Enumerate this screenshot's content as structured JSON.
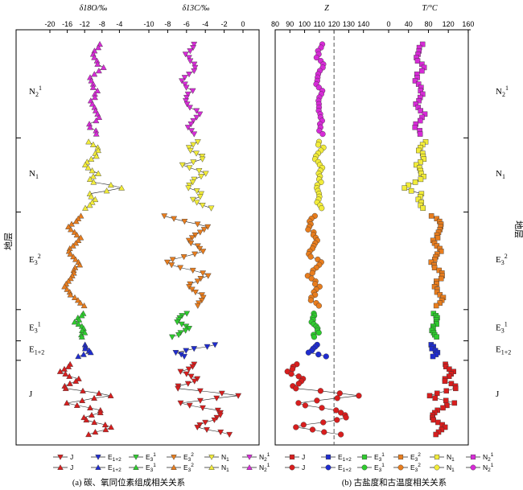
{
  "captions": {
    "left": "(a) 碳、氧同位素组成相关关系",
    "right": "(b) 古盐度和古温度相关关系"
  },
  "strata_axis_title": "地层",
  "strata_labels": [
    {
      "main": "N",
      "sub": "2",
      "sup": "1",
      "depth": 0.12
    },
    {
      "main": "N",
      "sub": "1",
      "sup": "",
      "depth": 0.33
    },
    {
      "main": "E",
      "sub": "3",
      "sup": "2",
      "depth": 0.55
    },
    {
      "main": "E",
      "sub": "3",
      "sup": "1",
      "depth": 0.725
    },
    {
      "main": "E",
      "sub": "1+2",
      "sup": "",
      "depth": 0.78
    },
    {
      "main": "J",
      "sub": "",
      "sup": "",
      "depth": 0.895
    }
  ],
  "legend": {
    "top_markers": [
      "J",
      "E1+2",
      "E3 1",
      "E3 2",
      "N1",
      "N2 1"
    ],
    "rows_left": [
      {
        "marker": "triangle-down",
        "entries": [
          {
            "label": "J",
            "sub": "",
            "sup": "",
            "color": "#d81e1e"
          },
          {
            "label": "E",
            "sub": "1+2",
            "sup": "",
            "color": "#1f2ccf"
          },
          {
            "label": "E",
            "sub": "3",
            "sup": "1",
            "color": "#2ecc2e"
          },
          {
            "label": "E",
            "sub": "3",
            "sup": "2",
            "color": "#e87d1e"
          },
          {
            "label": "N",
            "sub": "1",
            "sup": "",
            "color": "#f2ec3a"
          },
          {
            "label": "N",
            "sub": "2",
            "sup": "1",
            "color": "#d72bd7"
          }
        ]
      },
      {
        "marker": "triangle-up",
        "entries": [
          {
            "label": "J",
            "sub": "",
            "sup": "",
            "color": "#d81e1e"
          },
          {
            "label": "E",
            "sub": "1+2",
            "sup": "",
            "color": "#1f2ccf"
          },
          {
            "label": "E",
            "sub": "3",
            "sup": "1",
            "color": "#2ecc2e"
          },
          {
            "label": "E",
            "sub": "3",
            "sup": "2",
            "color": "#e87d1e"
          },
          {
            "label": "N",
            "sub": "1",
            "sup": "",
            "color": "#f2ec3a"
          },
          {
            "label": "N",
            "sub": "2",
            "sup": "1",
            "color": "#d72bd7"
          }
        ]
      }
    ],
    "rows_right": [
      {
        "marker": "square",
        "entries": [
          {
            "label": "J",
            "sub": "",
            "sup": "",
            "color": "#d81e1e"
          },
          {
            "label": "E",
            "sub": "1+2",
            "sup": "",
            "color": "#1f2ccf"
          },
          {
            "label": "E",
            "sub": "3",
            "sup": "1",
            "color": "#2ecc2e"
          },
          {
            "label": "E",
            "sub": "3",
            "sup": "2",
            "color": "#e87d1e"
          },
          {
            "label": "N",
            "sub": "1",
            "sup": "",
            "color": "#f2ec3a"
          },
          {
            "label": "N",
            "sub": "2",
            "sup": "1",
            "color": "#d72bd7"
          }
        ]
      },
      {
        "marker": "circle",
        "entries": [
          {
            "label": "J",
            "sub": "",
            "sup": "",
            "color": "#d81e1e"
          },
          {
            "label": "E",
            "sub": "1+2",
            "sup": "",
            "color": "#1f2ccf"
          },
          {
            "label": "E",
            "sub": "3",
            "sup": "1",
            "color": "#2ecc2e"
          },
          {
            "label": "E",
            "sub": "3",
            "sup": "2",
            "color": "#e87d1e"
          },
          {
            "label": "N",
            "sub": "1",
            "sup": "",
            "color": "#f2ec3a"
          },
          {
            "label": "N",
            "sub": "2",
            "sup": "1",
            "color": "#d72bd7"
          }
        ]
      }
    ]
  },
  "strata_colors": {
    "N2_1": "#d72bd7",
    "N1": "#f2ec3a",
    "E3_2": "#e87d1e",
    "E3_1": "#2ecc2e",
    "E1_2": "#1f2ccf",
    "J": "#d81e1e"
  },
  "chart_data": [
    {
      "type": "line",
      "id": "d18O",
      "title": "δ18O/‰",
      "xlim": [
        -20,
        0
      ],
      "xticks": [
        -20,
        -16,
        -12,
        -8,
        -4
      ],
      "tick_labels": [
        "-20",
        "-16",
        "-12",
        "-8",
        "-4"
      ],
      "marker": "triangle-up",
      "profile": [
        [
          0.0,
          -8.5
        ],
        [
          0.03,
          -10
        ],
        [
          0.06,
          -8
        ],
        [
          0.09,
          -11
        ],
        [
          0.12,
          -9
        ],
        [
          0.15,
          -10.5
        ],
        [
          0.18,
          -8.5
        ],
        [
          0.21,
          -11
        ],
        [
          0.23,
          -9
        ],
        [
          0.25,
          -11
        ],
        [
          0.27,
          -8.5
        ],
        [
          0.29,
          -10
        ],
        [
          0.31,
          -12
        ],
        [
          0.33,
          -9
        ],
        [
          0.35,
          -11
        ],
        [
          0.37,
          -2.5
        ],
        [
          0.38,
          -11
        ],
        [
          0.4,
          -9.5
        ],
        [
          0.42,
          -12
        ],
        [
          0.44,
          -12.5
        ],
        [
          0.47,
          -15.5
        ],
        [
          0.5,
          -13
        ],
        [
          0.53,
          -16
        ],
        [
          0.56,
          -13
        ],
        [
          0.59,
          -15
        ],
        [
          0.62,
          -17
        ],
        [
          0.65,
          -14
        ],
        [
          0.67,
          -12
        ],
        [
          0.69,
          -12.5
        ],
        [
          0.71,
          -14
        ],
        [
          0.73,
          -12
        ],
        [
          0.75,
          -13
        ],
        [
          0.77,
          -12
        ],
        [
          0.79,
          -11
        ],
        [
          0.8,
          -13
        ],
        [
          0.82,
          -15
        ],
        [
          0.84,
          -18
        ],
        [
          0.86,
          -13
        ],
        [
          0.88,
          -17
        ],
        [
          0.9,
          -6
        ],
        [
          0.92,
          -16
        ],
        [
          0.94,
          -7
        ],
        [
          0.96,
          -13
        ],
        [
          0.98,
          -5
        ],
        [
          1.0,
          -11
        ]
      ],
      "segments": [
        [
          0,
          9
        ],
        [
          9,
          19
        ],
        [
          19,
          28
        ],
        [
          28,
          32
        ],
        [
          32,
          35
        ],
        [
          35,
          45
        ]
      ]
    },
    {
      "type": "line",
      "id": "d13C",
      "title": "δ13C/‰",
      "xlim": [
        -10,
        0
      ],
      "xticks": [
        -10,
        -8,
        -6,
        -4,
        -2,
        0
      ],
      "tick_labels": [
        "-10",
        "-8",
        "-6",
        "-4",
        "-2",
        "0"
      ],
      "marker": "triangle-down",
      "profile": [
        [
          0.0,
          -5
        ],
        [
          0.03,
          -6
        ],
        [
          0.06,
          -5
        ],
        [
          0.09,
          -6.5
        ],
        [
          0.12,
          -5.5
        ],
        [
          0.15,
          -6
        ],
        [
          0.18,
          -4.5
        ],
        [
          0.21,
          -6
        ],
        [
          0.23,
          -5
        ],
        [
          0.25,
          -5
        ],
        [
          0.27,
          -6
        ],
        [
          0.29,
          -4
        ],
        [
          0.31,
          -6.5
        ],
        [
          0.33,
          -4
        ],
        [
          0.35,
          -5.5
        ],
        [
          0.37,
          -6
        ],
        [
          0.38,
          -4
        ],
        [
          0.4,
          -5.5
        ],
        [
          0.42,
          -3.5
        ],
        [
          0.44,
          -8.5
        ],
        [
          0.47,
          -3.5
        ],
        [
          0.5,
          -6
        ],
        [
          0.53,
          -4
        ],
        [
          0.56,
          -8.5
        ],
        [
          0.59,
          -3.5
        ],
        [
          0.62,
          -6
        ],
        [
          0.65,
          -4
        ],
        [
          0.67,
          -5
        ],
        [
          0.69,
          -6
        ],
        [
          0.71,
          -7
        ],
        [
          0.73,
          -5.5
        ],
        [
          0.75,
          -7.5
        ],
        [
          0.77,
          -3
        ],
        [
          0.79,
          -7
        ],
        [
          0.8,
          -6
        ],
        [
          0.82,
          -5
        ],
        [
          0.84,
          -6.5
        ],
        [
          0.86,
          -4.5
        ],
        [
          0.88,
          -7.5
        ],
        [
          0.9,
          -0.5
        ],
        [
          0.92,
          -7
        ],
        [
          0.94,
          -2
        ],
        [
          0.96,
          -3
        ],
        [
          0.98,
          -5
        ],
        [
          1.0,
          -1.5
        ]
      ],
      "segments": [
        [
          0,
          9
        ],
        [
          9,
          19
        ],
        [
          19,
          28
        ],
        [
          28,
          32
        ],
        [
          32,
          35
        ],
        [
          35,
          45
        ]
      ]
    },
    {
      "type": "line",
      "id": "Z",
      "title": "Z",
      "xlim": [
        80,
        150
      ],
      "xticks": [
        80,
        90,
        100,
        110,
        120,
        130,
        140
      ],
      "tick_labels": [
        "80",
        "90",
        "100",
        "110",
        "120",
        "130",
        "140"
      ],
      "threshold": 120,
      "marker": "circle",
      "profile": [
        [
          0.0,
          111
        ],
        [
          0.03,
          109
        ],
        [
          0.06,
          112
        ],
        [
          0.09,
          108
        ],
        [
          0.12,
          111
        ],
        [
          0.15,
          109
        ],
        [
          0.18,
          112
        ],
        [
          0.21,
          109
        ],
        [
          0.23,
          111
        ],
        [
          0.25,
          110
        ],
        [
          0.27,
          112
        ],
        [
          0.29,
          108
        ],
        [
          0.31,
          111
        ],
        [
          0.33,
          109
        ],
        [
          0.35,
          112
        ],
        [
          0.37,
          108
        ],
        [
          0.38,
          111
        ],
        [
          0.4,
          109
        ],
        [
          0.42,
          111
        ],
        [
          0.44,
          107
        ],
        [
          0.47,
          103
        ],
        [
          0.5,
          110
        ],
        [
          0.53,
          102
        ],
        [
          0.56,
          110
        ],
        [
          0.59,
          103
        ],
        [
          0.62,
          110
        ],
        [
          0.65,
          104
        ],
        [
          0.67,
          109
        ],
        [
          0.69,
          108
        ],
        [
          0.71,
          106
        ],
        [
          0.73,
          109
        ],
        [
          0.75,
          107
        ],
        [
          0.77,
          110
        ],
        [
          0.79,
          104
        ],
        [
          0.8,
          116
        ],
        [
          0.82,
          95
        ],
        [
          0.84,
          88
        ],
        [
          0.86,
          100
        ],
        [
          0.88,
          90
        ],
        [
          0.9,
          138
        ],
        [
          0.92,
          93
        ],
        [
          0.94,
          125
        ],
        [
          0.96,
          128
        ],
        [
          0.98,
          92
        ],
        [
          1.0,
          125
        ]
      ],
      "segments": [
        [
          0,
          9
        ],
        [
          9,
          19
        ],
        [
          19,
          28
        ],
        [
          28,
          32
        ],
        [
          32,
          35
        ],
        [
          35,
          45
        ]
      ]
    },
    {
      "type": "line",
      "id": "T",
      "title": "T/°C",
      "xlim": [
        0,
        165
      ],
      "xticks": [
        0,
        40,
        80,
        120,
        160
      ],
      "tick_labels": [
        "0",
        "40",
        "80",
        "120",
        "160"
      ],
      "marker": "square",
      "profile": [
        [
          0.0,
          70
        ],
        [
          0.03,
          55
        ],
        [
          0.06,
          72
        ],
        [
          0.09,
          52
        ],
        [
          0.12,
          68
        ],
        [
          0.15,
          55
        ],
        [
          0.18,
          70
        ],
        [
          0.21,
          52
        ],
        [
          0.23,
          66
        ],
        [
          0.25,
          72
        ],
        [
          0.27,
          60
        ],
        [
          0.29,
          75
        ],
        [
          0.31,
          58
        ],
        [
          0.33,
          70
        ],
        [
          0.35,
          62
        ],
        [
          0.37,
          25
        ],
        [
          0.38,
          65
        ],
        [
          0.4,
          60
        ],
        [
          0.42,
          72
        ],
        [
          0.44,
          90
        ],
        [
          0.47,
          110
        ],
        [
          0.5,
          92
        ],
        [
          0.53,
          105
        ],
        [
          0.56,
          88
        ],
        [
          0.59,
          108
        ],
        [
          0.62,
          90
        ],
        [
          0.65,
          112
        ],
        [
          0.67,
          95
        ],
        [
          0.69,
          88
        ],
        [
          0.71,
          100
        ],
        [
          0.73,
          86
        ],
        [
          0.75,
          98
        ],
        [
          0.77,
          82
        ],
        [
          0.79,
          100
        ],
        [
          0.8,
          85
        ],
        [
          0.82,
          112
        ],
        [
          0.84,
          130
        ],
        [
          0.86,
          110
        ],
        [
          0.88,
          138
        ],
        [
          0.9,
          80
        ],
        [
          0.92,
          130
        ],
        [
          0.94,
          95
        ],
        [
          0.96,
          88
        ],
        [
          0.98,
          118
        ],
        [
          1.0,
          95
        ]
      ],
      "segments": [
        [
          0,
          9
        ],
        [
          9,
          19
        ],
        [
          19,
          28
        ],
        [
          28,
          32
        ],
        [
          32,
          35
        ],
        [
          35,
          45
        ]
      ]
    }
  ]
}
